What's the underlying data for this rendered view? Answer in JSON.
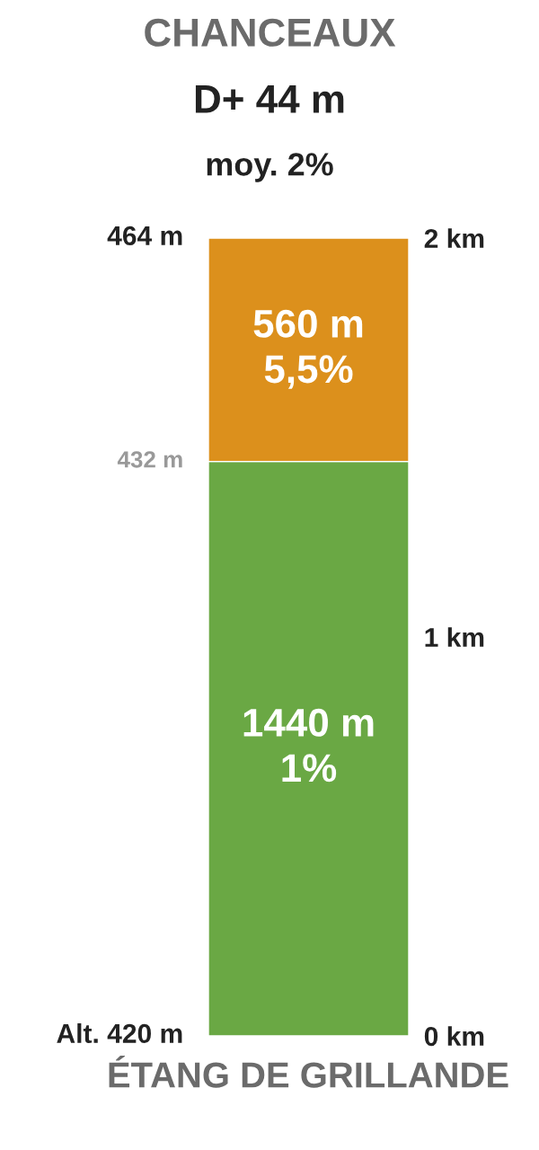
{
  "chart_data": {
    "type": "bar",
    "stacked": true,
    "title": "CHANCEAUX",
    "subtitle": "D+ 44 m",
    "xlabel": "ÉTANG DE GRILLANDE",
    "categories": [
      null
    ],
    "series": [
      {
        "color": "#6aa844",
        "values": [
          1.44
        ]
      },
      {
        "color": "#dc901c",
        "values": [
          0.56
        ]
      }
    ],
    "ylim": [
      0,
      2
    ],
    "yticks": [
      {
        "value": 0,
        "label": "0 km"
      },
      {
        "value": 1,
        "label": "1 km"
      },
      {
        "value": 2,
        "label": "2 km"
      }
    ],
    "annotations": [
      "moy. 2%",
      "Alt. 420 m",
      "432 m",
      "464 m",
      "1440 m\n1%",
      "560 m\n5,5%"
    ],
    "grid": false,
    "legend": false
  }
}
